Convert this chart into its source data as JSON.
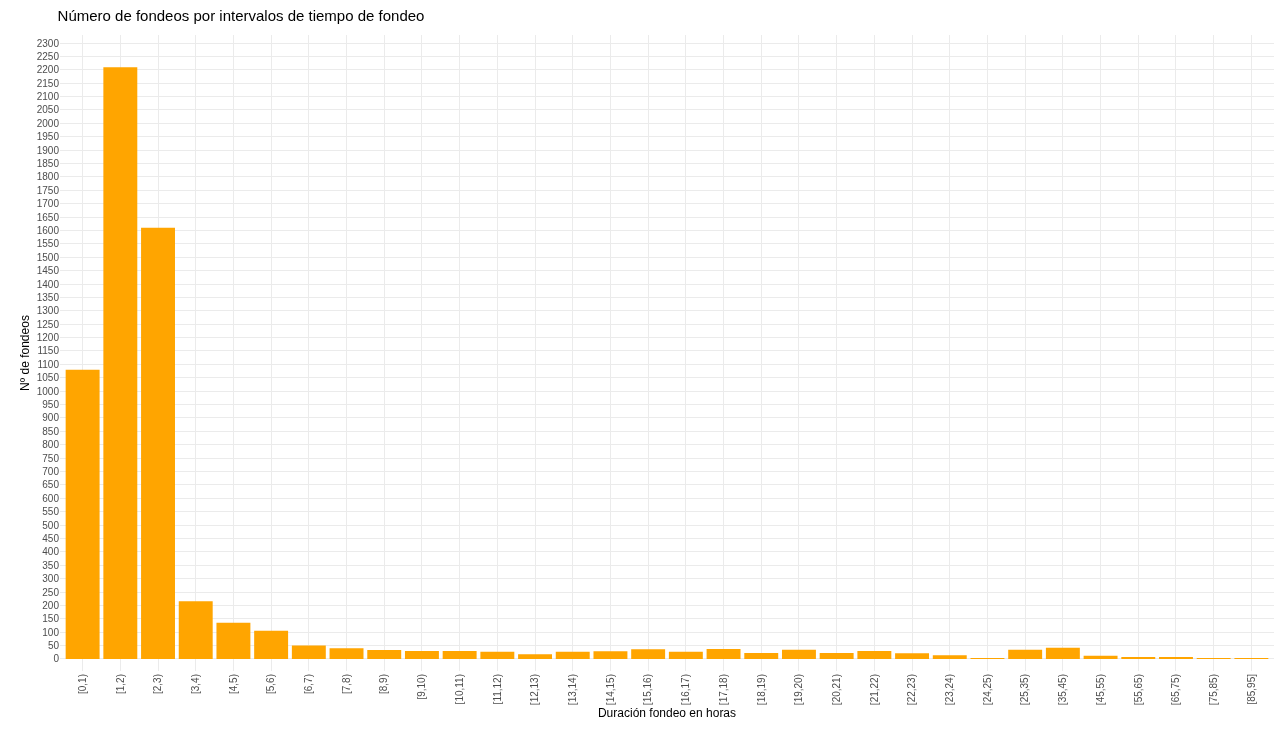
{
  "chart_data": {
    "type": "bar",
    "title": "Número de fondeos por intervalos de tiempo de fondeo",
    "xlabel": "Duración fondeo en horas",
    "ylabel": "Nº de fondeos",
    "categories": [
      "[0,1)",
      "[1,2)",
      "[2,3)",
      "[3,4)",
      "[4,5)",
      "[5,6)",
      "[6,7)",
      "[7,8)",
      "[8,9)",
      "[9,10)",
      "[10,11)",
      "[11,12)",
      "[12,13)",
      "[13,14)",
      "[14,15)",
      "[15,16)",
      "[16,17)",
      "[17,18)",
      "[18,19)",
      "[19,20)",
      "[20,21)",
      "[21,22)",
      "[22,23)",
      "[23,24)",
      "[24,25)",
      "[25,35)",
      "[35,45)",
      "[45,55)",
      "[55,65)",
      "[65,75)",
      "[75,85)",
      "[85,95]"
    ],
    "values": [
      1080,
      2210,
      1610,
      215,
      135,
      105,
      50,
      40,
      33,
      30,
      30,
      27,
      18,
      27,
      29,
      36,
      27,
      37,
      22,
      34,
      22,
      30,
      21,
      14,
      3,
      34,
      42,
      12,
      4,
      4,
      1,
      1
    ],
    "color": "#ffa500",
    "ylim": [
      -45,
      2330
    ],
    "yticks": [
      0,
      50,
      100,
      150,
      200,
      250,
      300,
      350,
      400,
      450,
      500,
      550,
      600,
      650,
      700,
      750,
      800,
      850,
      900,
      950,
      1000,
      1050,
      1100,
      1150,
      1200,
      1250,
      1300,
      1350,
      1400,
      1450,
      1500,
      1550,
      1600,
      1650,
      1700,
      1750,
      1800,
      1850,
      1900,
      1950,
      2000,
      2050,
      2100,
      2150,
      2200,
      2250,
      2300
    ],
    "grid": true
  }
}
